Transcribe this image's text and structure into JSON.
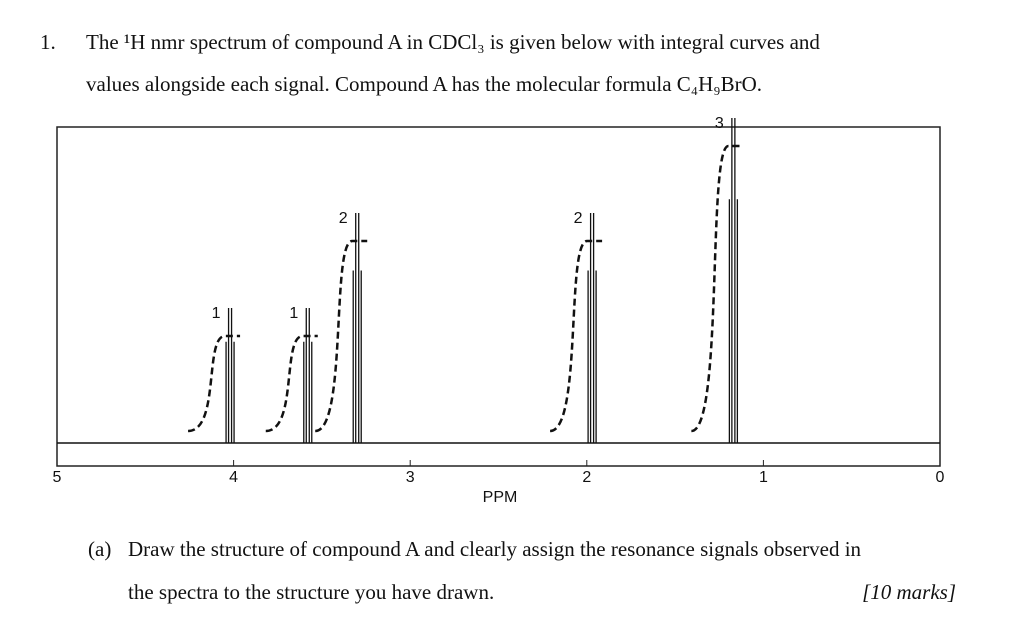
{
  "question": {
    "number": "1.",
    "lines": [
      "The ¹H nmr spectrum of compound A in CDCl₃ is given below with integral curves and",
      "values alongside each signal. Compound A has the molecular formula C₄H₉BrO."
    ]
  },
  "spectrum": {
    "type": "nmr",
    "xlabel": "PPM",
    "xlim": [
      5,
      0
    ],
    "xticks": [
      5,
      4,
      3,
      2,
      1,
      0
    ],
    "signals": [
      {
        "ppm": 4.02,
        "integral": 1
      },
      {
        "ppm": 3.58,
        "integral": 1
      },
      {
        "ppm": 3.3,
        "integral": 2
      },
      {
        "ppm": 1.97,
        "integral": 2
      },
      {
        "ppm": 1.17,
        "integral": 3
      }
    ]
  },
  "part_a": {
    "label": "(a)",
    "lines": [
      "Draw the structure of compound A and clearly assign the resonance signals observed in",
      "the spectra to the structure you have drawn."
    ],
    "marks": "[10 marks]"
  }
}
